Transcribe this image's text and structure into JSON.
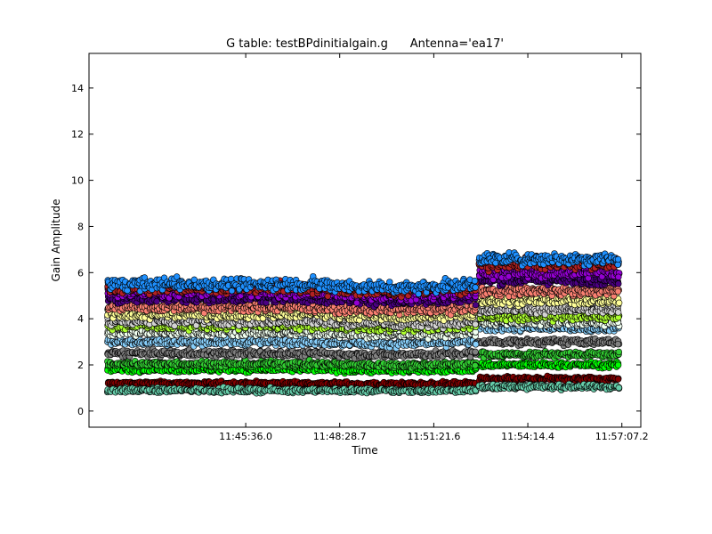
{
  "chart_data": {
    "type": "scatter",
    "title": "G table: testBPdinitialgain.g      Antenna='ea17'",
    "xlabel": "Time",
    "ylabel": "Gain Amplitude",
    "xlim_seconds": [
      42048,
      43062
    ],
    "ylim": [
      -0.7,
      15.5
    ],
    "x_ticks": [
      {
        "seconds": 42336.0,
        "label": "11:45:36.0"
      },
      {
        "seconds": 42508.7,
        "label": "11:48:28.7"
      },
      {
        "seconds": 42681.6,
        "label": "11:51:21.6"
      },
      {
        "seconds": 42854.4,
        "label": "11:54:14.4"
      },
      {
        "seconds": 43027.2,
        "label": "11:57:07.2"
      }
    ],
    "y_ticks": [
      0,
      2,
      4,
      6,
      8,
      10,
      12,
      14
    ],
    "grid": false,
    "legend": "none",
    "scan_gap_seconds": [
      42758,
      42766
    ],
    "segments": [
      {
        "start_seconds": 42083,
        "end_seconds": 42758
      },
      {
        "start_seconds": 42766,
        "end_seconds": 43021
      }
    ],
    "series": [
      {
        "color": "#800000",
        "level_scan1": 1.2,
        "level_scan2": 1.4
      },
      {
        "color": "#66cdaa",
        "level_scan1": 0.9,
        "level_scan2": 1.05
      },
      {
        "color": "#00ff00",
        "level_scan1": 1.8,
        "level_scan2": 2.0
      },
      {
        "color": "#32cd32",
        "level_scan1": 2.05,
        "level_scan2": 2.45
      },
      {
        "color": "#808080",
        "level_scan1": 2.5,
        "level_scan2": 3.0
      },
      {
        "color": "#87cefa",
        "level_scan1": 3.0,
        "level_scan2": 3.6
      },
      {
        "color": "#f0fff0",
        "level_scan1": 3.4,
        "level_scan2": 3.85
      },
      {
        "color": "#adff2f",
        "level_scan1": 3.7,
        "level_scan2": 4.1
      },
      {
        "color": "#d3d3d3",
        "level_scan1": 3.9,
        "level_scan2": 4.4
      },
      {
        "color": "#ffff99",
        "level_scan1": 4.2,
        "level_scan2": 4.8
      },
      {
        "color": "#fa8072",
        "level_scan1": 4.5,
        "level_scan2": 5.2
      },
      {
        "color": "#4b0082",
        "level_scan1": 4.9,
        "level_scan2": 5.7
      },
      {
        "color": "#9400d3",
        "level_scan1": 5.15,
        "level_scan2": 6.0
      },
      {
        "color": "#b22222",
        "level_scan1": 5.35,
        "level_scan2": 6.4
      },
      {
        "color": "#1e90ff",
        "level_scan1": 5.5,
        "level_scan2": 6.6
      }
    ]
  }
}
